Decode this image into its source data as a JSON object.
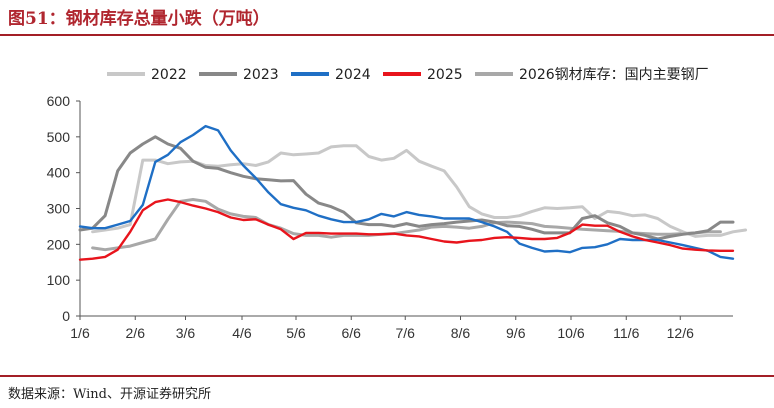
{
  "header": {
    "title": "图51：钢材库存总量小跌（万吨）"
  },
  "footer": {
    "source": "数据来源：Wind、开源证券研究所"
  },
  "chart_data": {
    "type": "line",
    "title": "图51：钢材库存总量小跌（万吨）",
    "xlabel": "",
    "ylabel": "",
    "ylim": [
      0,
      600
    ],
    "yticks": [
      0,
      100,
      200,
      300,
      400,
      500,
      600
    ],
    "x_range": [
      1,
      53
    ],
    "xtick_labels": [
      "1/6",
      "2/6",
      "3/6",
      "4/6",
      "5/6",
      "6/6",
      "7/6",
      "8/6",
      "9/6",
      "10/6",
      "11/6",
      "12/6"
    ],
    "xtick_weeks": [
      1,
      5.4,
      9.4,
      13.9,
      18.2,
      22.6,
      26.9,
      31.3,
      35.7,
      40.1,
      44.5,
      48.8
    ],
    "grid": false,
    "legend_position": "top",
    "colors": {
      "2022": "#c8c8c8",
      "2023": "#888888",
      "2024": "#1f6fc5",
      "2025": "#e8141c",
      "2026": "#a8a8a8"
    },
    "series": [
      {
        "name": "2022",
        "start_week": 2,
        "values": [
          235,
          240,
          245,
          255,
          435,
          435,
          425,
          430,
          432,
          420,
          418,
          422,
          425,
          420,
          430,
          455,
          450,
          452,
          455,
          472,
          475,
          475,
          445,
          435,
          440,
          462,
          432,
          418,
          405,
          360,
          305,
          285,
          275,
          275,
          280,
          292,
          302,
          300,
          302,
          305,
          272,
          292,
          288,
          280,
          282,
          272,
          250,
          235,
          222,
          225,
          225,
          235,
          240
        ]
      },
      {
        "name": "2023",
        "start_week": 1,
        "values": [
          240,
          245,
          280,
          405,
          455,
          480,
          500,
          480,
          468,
          432,
          415,
          412,
          400,
          390,
          383,
          380,
          377,
          378,
          340,
          315,
          305,
          290,
          260,
          255,
          255,
          250,
          258,
          250,
          255,
          258,
          262,
          265,
          268,
          262,
          252,
          250,
          242,
          232,
          232,
          232,
          272,
          280,
          260,
          250,
          232,
          225,
          215,
          222,
          228,
          232,
          238,
          262,
          262
        ]
      },
      {
        "name": "2024",
        "start_week": 1,
        "values": [
          250,
          245,
          245,
          255,
          265,
          310,
          430,
          450,
          485,
          505,
          530,
          518,
          462,
          420,
          385,
          345,
          312,
          302,
          295,
          280,
          270,
          262,
          262,
          270,
          285,
          278,
          290,
          282,
          278,
          272,
          272,
          272,
          262,
          250,
          235,
          202,
          190,
          180,
          182,
          178,
          190,
          192,
          200,
          215,
          212,
          212,
          212,
          205,
          198,
          190,
          182,
          165,
          160
        ]
      },
      {
        "name": "2025",
        "start_week": 1,
        "values": [
          157,
          160,
          165,
          185,
          235,
          295,
          318,
          325,
          318,
          308,
          300,
          290,
          275,
          268,
          270,
          255,
          242,
          215,
          232,
          232,
          230,
          230,
          230,
          228,
          228,
          230,
          225,
          222,
          215,
          208,
          205,
          210,
          212,
          218,
          220,
          218,
          215,
          215,
          218,
          232,
          255,
          252,
          252,
          235,
          222,
          212,
          205,
          198,
          188,
          185,
          183,
          182,
          182
        ]
      },
      {
        "name": "2026钢材库存：国内主要钢厂",
        "start_week": 2,
        "values": [
          190,
          185,
          190,
          195,
          205,
          215,
          270,
          320,
          325,
          320,
          298,
          285,
          278,
          275,
          255,
          245,
          230,
          225,
          225,
          220,
          225,
          225,
          225,
          228,
          230,
          235,
          240,
          248,
          250,
          248,
          245,
          250,
          260,
          262,
          260,
          258,
          250,
          248,
          245,
          242,
          240,
          238,
          236,
          232,
          230,
          228,
          228,
          230,
          232,
          235,
          235
        ]
      }
    ]
  }
}
